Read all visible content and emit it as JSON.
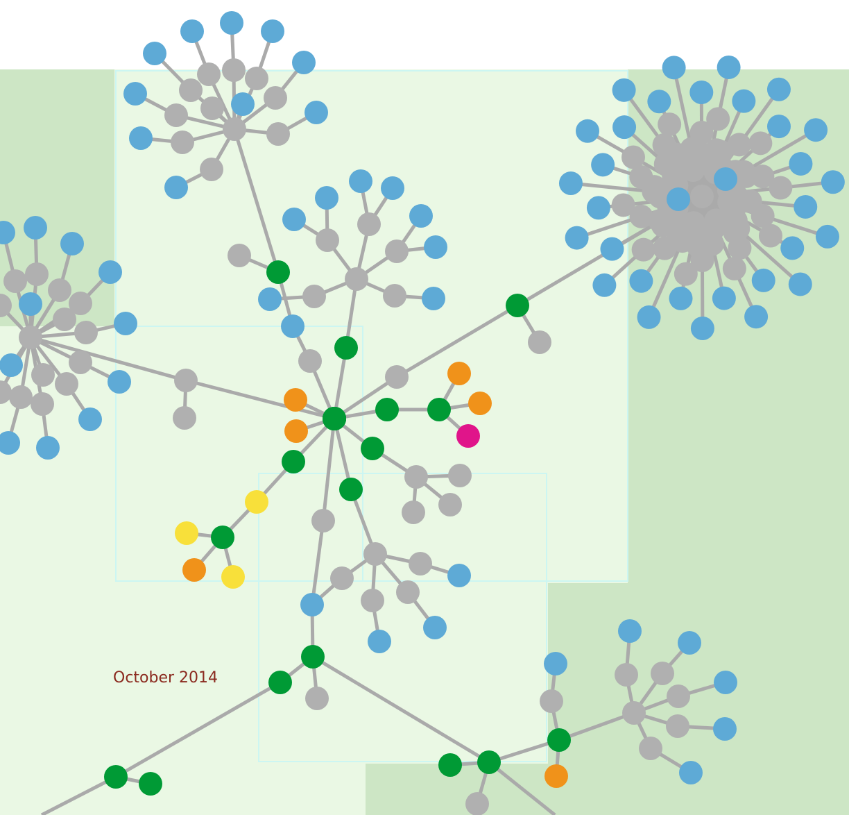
{
  "caption": "October 2014"
}
